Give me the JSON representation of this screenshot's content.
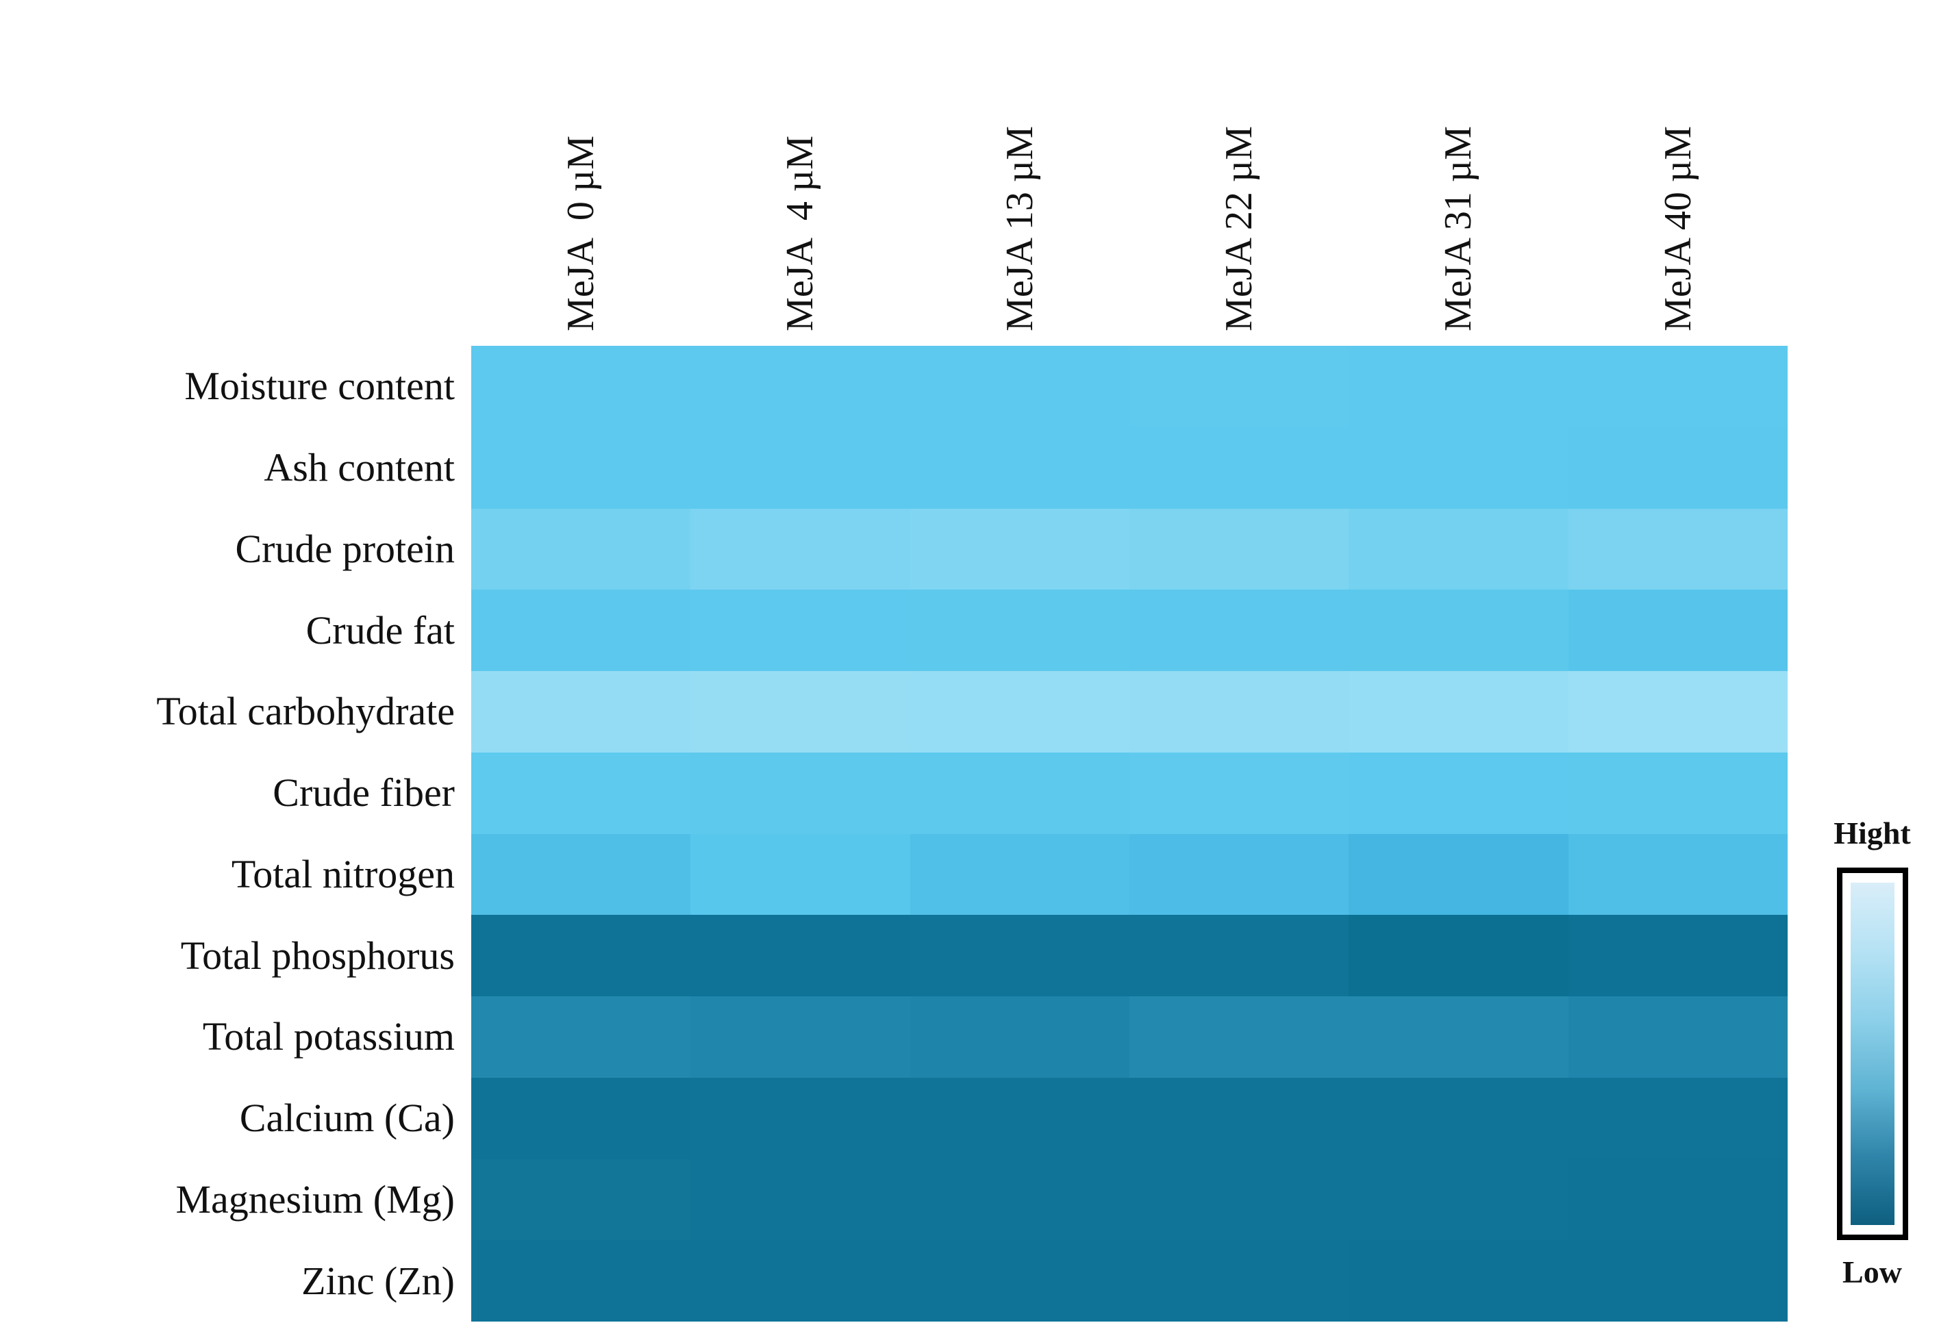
{
  "chart_data": {
    "type": "heatmap",
    "title": "",
    "columns": [
      "MeJA  0 µM",
      "MeJA  4 µM",
      "MeJA 13 µM",
      "MeJA 22 µM",
      "MeJA 31 µM",
      "MeJA 40 µM"
    ],
    "rows": [
      "Moisture content",
      "Ash content",
      "Crude protein",
      "Crude fat",
      "Total carbohydrate",
      "Crude fiber",
      "Total nitrogen",
      "Total phosphorus",
      "Total potassium",
      "Calcium (Ca)",
      "Magnesium (Mg)",
      "Zinc (Zn)"
    ],
    "value_scale": "qualitative, color-coded from Low (dark teal) to Hight (light blue); no numeric ticks shown",
    "relative_values": [
      [
        0.63,
        0.63,
        0.63,
        0.64,
        0.63,
        0.63
      ],
      [
        0.63,
        0.63,
        0.63,
        0.63,
        0.63,
        0.62
      ],
      [
        0.74,
        0.78,
        0.79,
        0.77,
        0.74,
        0.77
      ],
      [
        0.62,
        0.63,
        0.63,
        0.63,
        0.62,
        0.6
      ],
      [
        0.88,
        0.89,
        0.88,
        0.87,
        0.88,
        0.91
      ],
      [
        0.64,
        0.63,
        0.63,
        0.64,
        0.63,
        0.63
      ],
      [
        0.55,
        0.6,
        0.56,
        0.54,
        0.5,
        0.55
      ],
      [
        0.05,
        0.05,
        0.06,
        0.06,
        0.04,
        0.05
      ],
      [
        0.24,
        0.23,
        0.22,
        0.25,
        0.25,
        0.23
      ],
      [
        0.08,
        0.09,
        0.09,
        0.09,
        0.09,
        0.09
      ],
      [
        0.1,
        0.09,
        0.09,
        0.09,
        0.09,
        0.08
      ],
      [
        0.08,
        0.08,
        0.08,
        0.08,
        0.07,
        0.07
      ]
    ],
    "cell_colors": [
      [
        "#5ec9ee",
        "#5ec9ee",
        "#5ec9ee",
        "#5fc9ee",
        "#5ec9ee",
        "#5dc9ee"
      ],
      [
        "#5dc9ee",
        "#5dc9ee",
        "#5dc9ee",
        "#5ec9ee",
        "#5dc9ee",
        "#5cc8ed"
      ],
      [
        "#74d1f0",
        "#7dd4f2",
        "#80d6f2",
        "#7cd4f1",
        "#74d1f0",
        "#7bd3f1"
      ],
      [
        "#5cc8ed",
        "#5ec9ee",
        "#5dc9ed",
        "#5dc8ed",
        "#5bc8ec",
        "#57c5eb"
      ],
      [
        "#94dcf4",
        "#96ddf4",
        "#95ddf4",
        "#93dcf4",
        "#95ddf4",
        "#9adff5"
      ],
      [
        "#5ecaee",
        "#5dc9ed",
        "#5cc9ed",
        "#5fcaee",
        "#5dc9ee",
        "#5cc9ed"
      ],
      [
        "#4fbfe7",
        "#58c7ec",
        "#50c0e8",
        "#4dbde7",
        "#45b6e2",
        "#4fbfe7"
      ],
      [
        "#0e7396",
        "#0e7396",
        "#0f7497",
        "#0f7497",
        "#0c7093",
        "#0d7295"
      ],
      [
        "#2288ad",
        "#2186ac",
        "#1f84aa",
        "#2389ae",
        "#2389ae",
        "#2085ab"
      ],
      [
        "#0f7397",
        "#107499",
        "#107499",
        "#107499",
        "#107499",
        "#107499"
      ],
      [
        "#127699",
        "#107499",
        "#107499",
        "#107499",
        "#107499",
        "#0f7398"
      ],
      [
        "#0f7398",
        "#0f7398",
        "#0f7398",
        "#0f7398",
        "#0e7297",
        "#0e7297"
      ]
    ],
    "legend": {
      "high_label": "Hight",
      "low_label": "Low",
      "position": "right",
      "gradient": [
        "#d9eef9",
        "#b5e2f4",
        "#8dd0e9",
        "#60b4d4",
        "#2f85a9",
        "#0e5f80"
      ]
    },
    "layout": {
      "grid_lines": "off",
      "column_labels_rotated_degrees": 90,
      "row_labels_alignment": "right"
    }
  }
}
